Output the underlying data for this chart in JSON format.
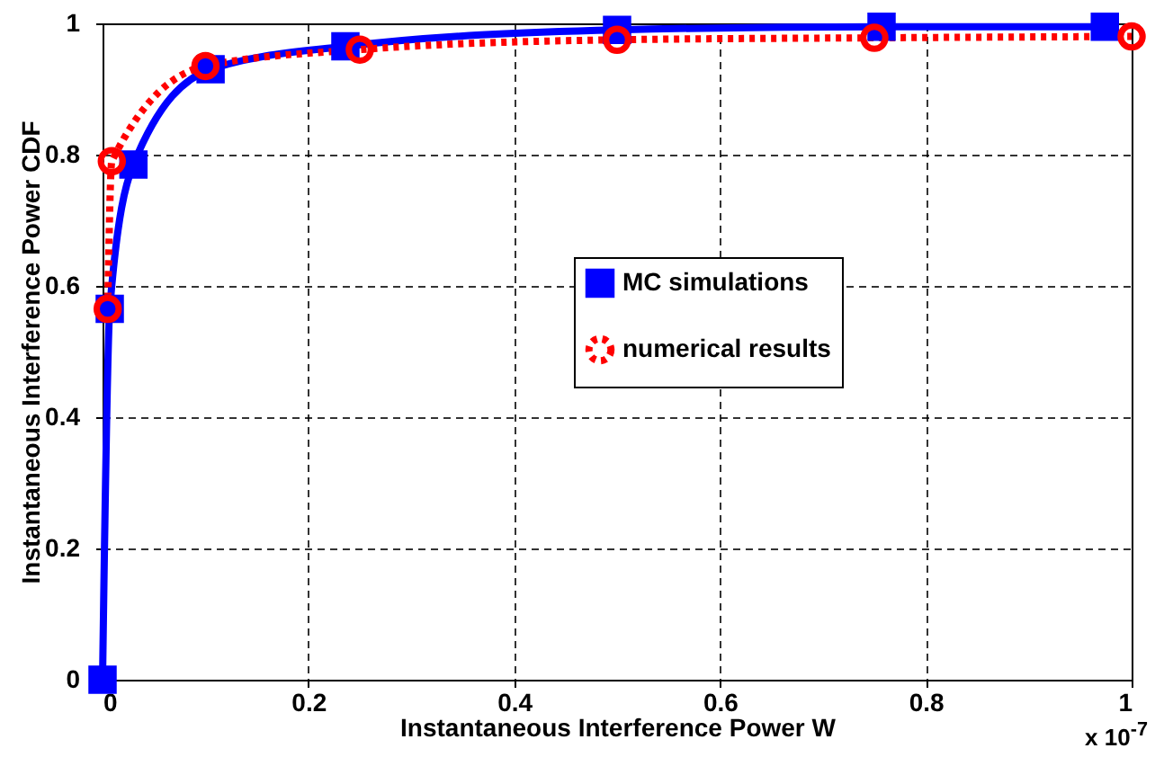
{
  "chart_data": {
    "type": "line",
    "xlabel": "Instantaneous Interference Power      W",
    "ylabel": "Instantaneous Interference Power CDF",
    "annotations": [
      "x 10$^{-7}$"
    ],
    "series": [
      {
        "name": "MC simulations",
        "color": "#0000ff",
        "marker": "square",
        "line_style": "solid",
        "x": [
          0,
          0.007,
          0.03,
          0.105,
          0.236,
          0.5,
          0.757,
          0.974
        ],
        "values": [
          0,
          0.565,
          0.785,
          0.93,
          0.965,
          0.99,
          0.995,
          0.995
        ]
      },
      {
        "name": "numerical results",
        "color": "#ff0000",
        "marker": "circle",
        "line_style": "dotted",
        "x": [
          0.005,
          0.009,
          0.1,
          0.25,
          0.5,
          0.75,
          1.0
        ],
        "values": [
          0.565,
          0.79,
          0.935,
          0.96,
          0.975,
          0.978,
          0.98
        ]
      }
    ],
    "xlim": [
      0,
      1
    ],
    "xticks": [
      0,
      0.2,
      0.4,
      0.6,
      0.8,
      1
    ],
    "ylim": [
      0,
      1
    ],
    "yticks": [
      0,
      0.2,
      0.4,
      0.6,
      0.8,
      1
    ],
    "grid": true,
    "legend": "right"
  }
}
